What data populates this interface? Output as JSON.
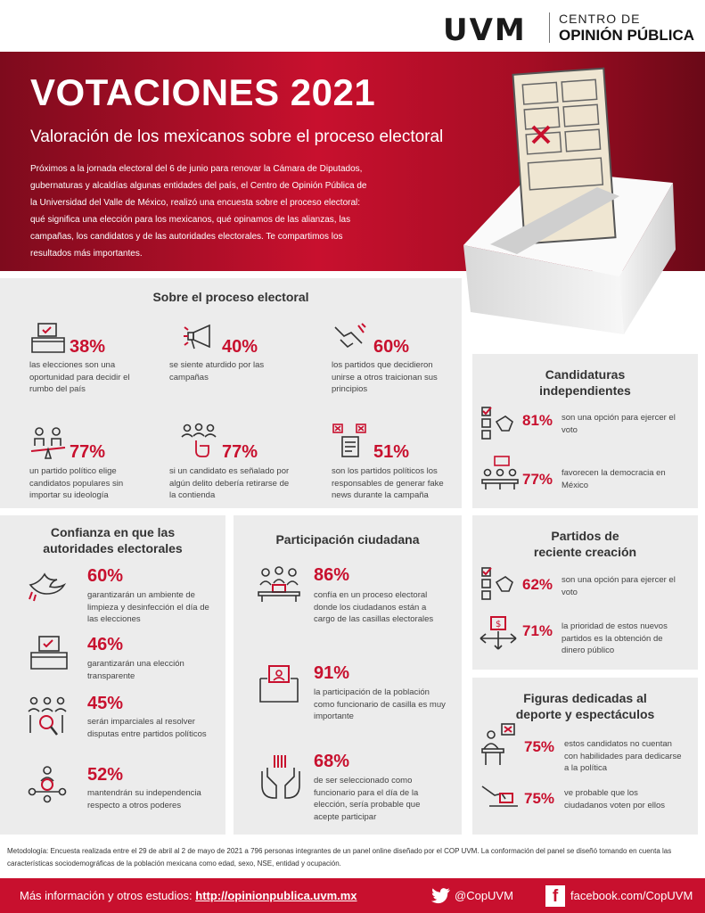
{
  "brand": {
    "uvm": "UVM",
    "cop_line1": "CENTRO DE",
    "cop_line2": "OPINIÓN PÚBLICA"
  },
  "hero": {
    "title": "VOTACIONES 2021",
    "subtitle": "Valoración de los mexicanos sobre el proceso electoral",
    "body": "Próximos a la jornada electoral del 6 de junio para renovar la Cámara de Diputados, gubernaturas y alcaldías algunas entidades del país, el Centro de Opinión Pública de la Universidad del Valle de México, realizó una encuesta sobre el proceso electoral: qué significa una elección para los mexicanos, qué opinamos de las alianzas, las campañas, los candidatos y de las autoridades electorales. Te compartimos los resultados más importantes."
  },
  "proceso": {
    "title": "Sobre el proceso electoral",
    "stats": [
      {
        "pct": "38%",
        "text": "las elecciones son una oportunidad para decidir el rumbo del país",
        "icon": "ballot-box-icon"
      },
      {
        "pct": "40%",
        "text": "se siente aturdido por las campañas",
        "icon": "megaphone-icon"
      },
      {
        "pct": "60%",
        "text": "los partidos que decidieron unirse a otros traicionan sus principios",
        "icon": "handshake-icon"
      },
      {
        "pct": "77%",
        "text": "un partido político elige candidatos populares sin importar su ideología",
        "icon": "scale-people-icon"
      },
      {
        "pct": "77%",
        "text": "si un candidato es señalado por algún delito debería retirarse de la contienda",
        "icon": "pointing-group-icon"
      },
      {
        "pct": "51%",
        "text": "son los partidos políticos los responsables de generar fake news durante la campaña",
        "icon": "fake-news-icon"
      }
    ]
  },
  "independientes": {
    "title": "Candidaturas independientes",
    "stats": [
      {
        "pct": "81%",
        "text": "son una opción para ejercer el voto",
        "icon": "checklist-icon"
      },
      {
        "pct": "77%",
        "text": "favorecen la democracia en México",
        "icon": "debate-icon"
      }
    ]
  },
  "confianza": {
    "title": "Confianza en que las autoridades electorales",
    "stats": [
      {
        "pct": "60%",
        "text": "garantizarán un ambiente de limpieza y desinfección el día de las elecciones",
        "icon": "dove-icon"
      },
      {
        "pct": "46%",
        "text": "garantizarán una elección transparente",
        "icon": "ballot-box-icon"
      },
      {
        "pct": "45%",
        "text": "serán imparciales al resolver disputas entre partidos políticos",
        "icon": "magnifier-people-icon"
      },
      {
        "pct": "52%",
        "text": "mantendrán su independencia respecto a otros poderes",
        "icon": "network-people-icon"
      }
    ]
  },
  "participacion": {
    "title": "Participación ciudadana",
    "stats": [
      {
        "pct": "86%",
        "text": "confía en un proceso electoral donde los ciudadanos están a cargo de las casillas electorales",
        "icon": "poll-workers-icon"
      },
      {
        "pct": "91%",
        "text": "la participación de la población como funcionario de casilla es muy importante",
        "icon": "vote-box-icon"
      },
      {
        "pct": "68%",
        "text": "de ser seleccionado como funcionario para el día de la elección, sería probable que acepte participar",
        "icon": "raised-hands-icon"
      }
    ]
  },
  "partidos": {
    "title": "Partidos de reciente creación",
    "stats": [
      {
        "pct": "62%",
        "text": "son una opción para ejercer el voto",
        "icon": "checklist-icon"
      },
      {
        "pct": "71%",
        "text": "la prioridad de estos nuevos partidos es la obtención de dinero público",
        "icon": "money-bag-icon"
      }
    ]
  },
  "figuras": {
    "title": "Figuras dedicadas al deporte y espectáculos",
    "stats": [
      {
        "pct": "75%",
        "text": "estos candidatos no cuentan con habilidades para dedicarse a la política",
        "icon": "speaker-podium-icon"
      },
      {
        "pct": "75%",
        "text": "ve probable que los ciudadanos voten por ellos",
        "icon": "voting-hand-icon"
      }
    ]
  },
  "methodology": "Metodología: Encuesta realizada entre el 29 de abril al 2 de mayo de 2021 a 796 personas integrantes de un panel online diseñado por el COP UVM. La conformación del panel se diseñó tomando en cuenta las características sociodemográficas de la población mexicana como edad, sexo, NSE, entidad y ocupación.",
  "footer": {
    "more_label": "Más información y otros estudios:",
    "link": "http://opinionpublica.uvm.mx",
    "twitter": "@CopUVM",
    "facebook": "facebook.com/CopUVM"
  },
  "colors": {
    "accent": "#c8102e",
    "panel": "#ececec"
  }
}
